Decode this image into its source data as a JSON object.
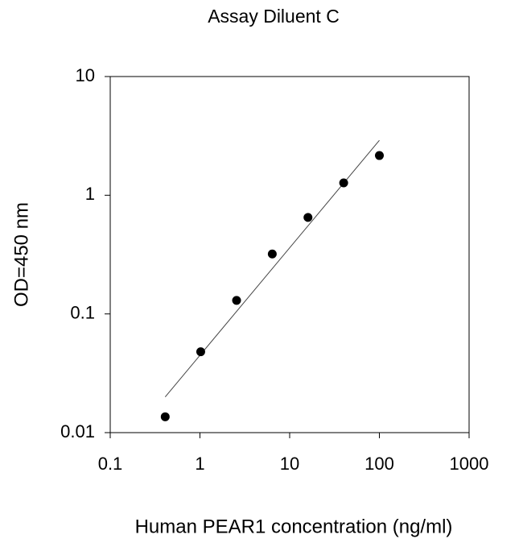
{
  "chart_data": {
    "type": "scatter",
    "title": "Assay Diluent C",
    "x_label": "Human PEAR1 concentration (ng/ml)",
    "y_label": "OD=450 nm",
    "x": [
      0.41,
      1.02,
      2.56,
      6.4,
      16,
      40,
      100
    ],
    "values": [
      0.0136,
      0.048,
      0.13,
      0.32,
      0.65,
      1.27,
      2.16
    ],
    "color": "#000000",
    "fit": {
      "x": [
        0.41,
        100
      ],
      "values": [
        0.02,
        2.9
      ]
    },
    "xscale": "log",
    "yscale": "log",
    "xlim": [
      0.1,
      1000
    ],
    "ylim": [
      0.01,
      10
    ],
    "xticks": [
      0.1,
      1,
      10,
      100,
      1000
    ],
    "yticks": [
      0.01,
      0.1,
      1,
      10
    ]
  }
}
